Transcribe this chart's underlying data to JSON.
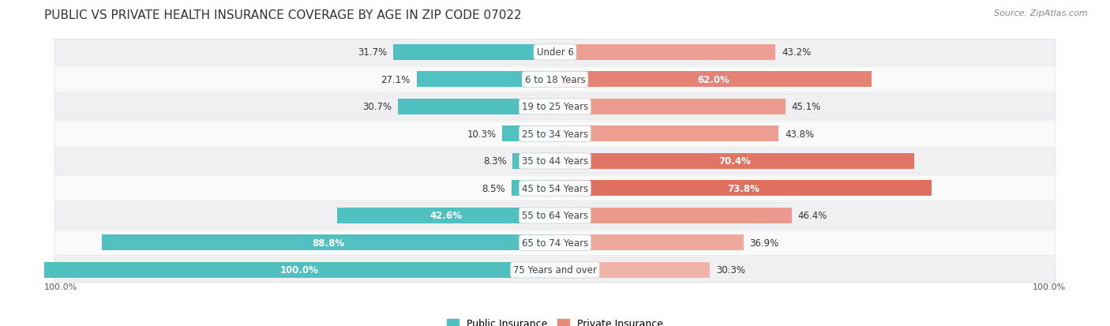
{
  "title": "PUBLIC VS PRIVATE HEALTH INSURANCE COVERAGE BY AGE IN ZIP CODE 07022",
  "source": "Source: ZipAtlas.com",
  "categories": [
    "Under 6",
    "6 to 18 Years",
    "19 to 25 Years",
    "25 to 34 Years",
    "35 to 44 Years",
    "45 to 54 Years",
    "55 to 64 Years",
    "65 to 74 Years",
    "75 Years and over"
  ],
  "public_values": [
    31.7,
    27.1,
    30.7,
    10.3,
    8.3,
    8.5,
    42.6,
    88.8,
    100.0
  ],
  "private_values": [
    43.2,
    62.0,
    45.1,
    43.8,
    70.4,
    73.8,
    46.4,
    36.9,
    30.3
  ],
  "public_color": "#50c0c0",
  "private_colors": [
    "#f0a898",
    "#e07060",
    "#f0a898",
    "#f0a898",
    "#e07060",
    "#e07060",
    "#f0a898",
    "#f0a898",
    "#f0a898"
  ],
  "label_color_dark": "#333333",
  "label_color_white": "#ffffff",
  "title_fontsize": 11,
  "source_fontsize": 8,
  "label_fontsize": 8.5,
  "axis_label_fontsize": 8,
  "legend_fontsize": 9,
  "max_value": 100.0,
  "bar_height": 0.58,
  "pub_white_threshold": 35,
  "priv_white_threshold": 55
}
